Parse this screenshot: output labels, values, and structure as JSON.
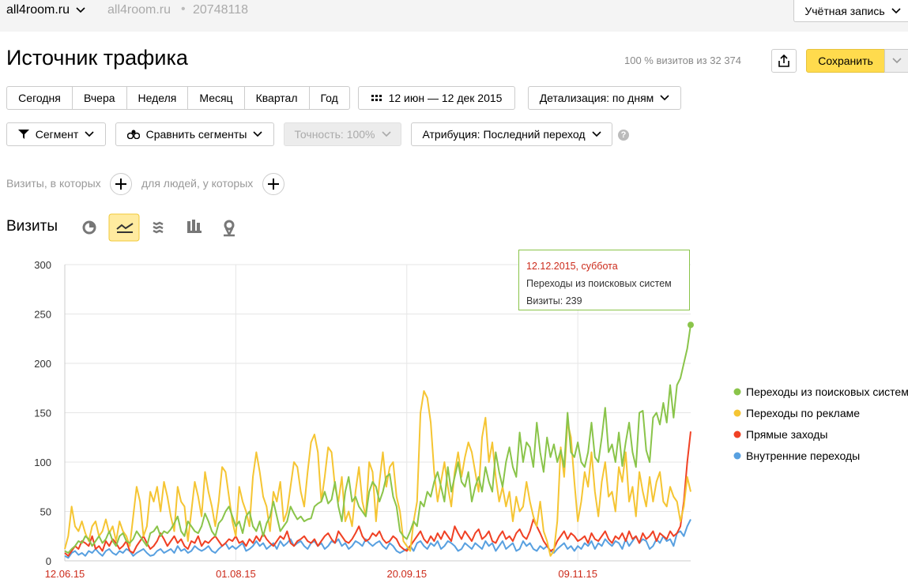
{
  "header": {
    "site": "all4room.ru",
    "site_secondary": "all4room.ru",
    "counter": "20748118",
    "account": "Учётная запись"
  },
  "page": {
    "title": "Источник трафика",
    "summary": "100 % визитов из 32 374",
    "save": "Сохранить"
  },
  "toolbar": {
    "periods": [
      "Сегодня",
      "Вчера",
      "Неделя",
      "Месяц",
      "Квартал",
      "Год"
    ],
    "date_range": "12 июн — 12 дек 2015",
    "detail": "Детализация: по дням",
    "segment": "Сегмент",
    "compare": "Сравнить сегменты",
    "accuracy": "Точность: 100%",
    "attribution": "Атрибуция: Последний переход",
    "help": "?"
  },
  "filter": {
    "visits": "Визиты, в которых",
    "people": "для людей, у которых"
  },
  "chart_heading": "Визиты",
  "tooltip": {
    "date": "12.12.2015, суббота",
    "series": "Переходы из поисковых систем",
    "value": "Визиты: 239"
  },
  "chart_data": {
    "type": "line",
    "categories": [
      "12.06.15",
      null,
      null,
      null,
      null,
      null,
      null,
      null,
      null,
      null,
      null,
      null,
      null,
      null,
      null,
      null,
      null,
      null,
      null,
      null,
      null,
      null,
      null,
      null,
      null,
      null,
      null,
      null,
      null,
      null,
      null,
      null,
      null,
      null,
      null,
      null,
      null,
      null,
      null,
      null,
      null,
      null,
      null,
      null,
      null,
      null,
      null,
      null,
      null,
      null,
      "01.08.15",
      null,
      null,
      null,
      null,
      null,
      null,
      null,
      null,
      null,
      null,
      null,
      null,
      null,
      null,
      null,
      null,
      null,
      null,
      null,
      null,
      null,
      null,
      null,
      null,
      null,
      null,
      null,
      null,
      null,
      null,
      null,
      null,
      null,
      null,
      null,
      null,
      null,
      null,
      null,
      null,
      null,
      null,
      null,
      null,
      null,
      null,
      null,
      null,
      null,
      "20.09.15",
      null,
      null,
      null,
      null,
      null,
      null,
      null,
      null,
      null,
      null,
      null,
      null,
      null,
      null,
      null,
      null,
      null,
      null,
      null,
      null,
      null,
      null,
      null,
      null,
      null,
      null,
      null,
      null,
      null,
      null,
      null,
      null,
      null,
      null,
      null,
      null,
      null,
      null,
      null,
      null,
      null,
      null,
      null,
      null,
      null,
      null,
      null,
      null,
      null,
      "09.11.15",
      null,
      null,
      null,
      null,
      null,
      null,
      null,
      null,
      null,
      null,
      null,
      null,
      null,
      null,
      null,
      null,
      null,
      null,
      null,
      null,
      null,
      null,
      null,
      null,
      null,
      null,
      null,
      null,
      null,
      null,
      null,
      null,
      null
    ],
    "ylim": [
      0,
      300
    ],
    "yticks": [
      0,
      50,
      100,
      150,
      200,
      250,
      300
    ],
    "grid": true,
    "legend": "right",
    "series": [
      {
        "name": "Переходы из поисковых систем",
        "color": "#8ac44a",
        "values": [
          10,
          8,
          12,
          15,
          20,
          18,
          25,
          22,
          15,
          20,
          25,
          18,
          22,
          30,
          20,
          15,
          25,
          28,
          20,
          18,
          22,
          30,
          25,
          20,
          15,
          28,
          30,
          35,
          25,
          30,
          28,
          32,
          38,
          45,
          30,
          25,
          40,
          35,
          30,
          28,
          35,
          48,
          40,
          30,
          25,
          38,
          42,
          50,
          55,
          45,
          35,
          40,
          28,
          45,
          50,
          35,
          30,
          40,
          25,
          38,
          45,
          60,
          45,
          30,
          35,
          40,
          55,
          48,
          42,
          45,
          40,
          42,
          43,
          55,
          58,
          60,
          70,
          58,
          62,
          80,
          55,
          40,
          70,
          85,
          60,
          65,
          55,
          50,
          45,
          70,
          80,
          75,
          60,
          70,
          85,
          88,
          65,
          55,
          30,
          25,
          22,
          30,
          40,
          35,
          60,
          55,
          70,
          65,
          80,
          90,
          75,
          60,
          95,
          70,
          85,
          100,
          80,
          75,
          90,
          60,
          75,
          85,
          70,
          95,
          80,
          70,
          110,
          90,
          75,
          100,
          115,
          95,
          85,
          130,
          100,
          120,
          115,
          95,
          140,
          110,
          90,
          125,
          105,
          118,
          100,
          112,
          95,
          150,
          110,
          105,
          120,
          100,
          95,
          110,
          140,
          105,
          100,
          125,
          155,
          110,
          118,
          100,
          130,
          96,
          120,
          140,
          110,
          95,
          150,
          152,
          112,
          100,
          145,
          150,
          138,
          160,
          140,
          178,
          145,
          178,
          185,
          200,
          215,
          239
        ]
      },
      {
        "name": "Переходы по рекламе",
        "color": "#f5c533",
        "values": [
          12,
          25,
          55,
          35,
          30,
          40,
          28,
          20,
          35,
          40,
          25,
          30,
          42,
          28,
          35,
          20,
          40,
          30,
          25,
          15,
          45,
          75,
          60,
          25,
          35,
          70,
          60,
          75,
          50,
          80,
          65,
          45,
          30,
          75,
          60,
          55,
          20,
          50,
          80,
          65,
          45,
          90,
          70,
          55,
          35,
          60,
          95,
          90,
          65,
          40,
          25,
          75,
          60,
          50,
          35,
          85,
          110,
          90,
          65,
          55,
          30,
          70,
          60,
          80,
          40,
          50,
          75,
          100,
          95,
          70,
          55,
          90,
          120,
          128,
          110,
          60,
          85,
          115,
          110,
          75,
          60,
          85,
          40,
          50,
          35,
          70,
          95,
          60,
          45,
          100,
          90,
          40,
          80,
          110,
          75,
          95,
          100,
          65,
          50,
          20,
          15,
          10,
          40,
          60,
          150,
          172,
          165,
          140,
          90,
          60,
          80,
          100,
          75,
          55,
          90,
          110,
          85,
          105,
          120,
          110,
          90,
          70,
          125,
          145,
          100,
          120,
          85,
          60,
          75,
          55,
          70,
          40,
          65,
          50,
          55,
          80,
          60,
          45,
          35,
          60,
          30,
          20,
          5,
          10,
          40,
          115,
          85,
          140,
          125,
          80,
          40,
          60,
          90,
          75,
          110,
          70,
          45,
          80,
          100,
          65,
          70,
          50,
          95,
          80,
          110,
          60,
          75,
          45,
          90,
          70,
          55,
          85,
          60,
          80,
          90,
          60,
          55,
          75,
          65,
          60,
          40,
          55,
          85,
          70
        ]
      },
      {
        "name": "Прямые заходы",
        "color": "#f04124",
        "values": [
          8,
          5,
          10,
          15,
          12,
          20,
          18,
          15,
          25,
          12,
          15,
          10,
          20,
          15,
          22,
          18,
          12,
          15,
          20,
          10,
          8,
          15,
          20,
          25,
          18,
          12,
          15,
          20,
          28,
          22,
          15,
          20,
          25,
          18,
          22,
          15,
          12,
          20,
          18,
          25,
          15,
          20,
          18,
          22,
          25,
          20,
          15,
          18,
          22,
          20,
          25,
          18,
          20,
          15,
          22,
          18,
          25,
          20,
          28,
          22,
          18,
          15,
          20,
          25,
          22,
          30,
          18,
          15,
          20,
          22,
          25,
          20,
          18,
          22,
          15,
          20,
          25,
          28,
          22,
          18,
          30,
          25,
          20,
          18,
          22,
          28,
          35,
          25,
          20,
          22,
          28,
          25,
          30,
          22,
          18,
          20,
          25,
          22,
          15,
          12,
          10,
          15,
          20,
          25,
          30,
          22,
          18,
          25,
          20,
          28,
          22,
          30,
          25,
          20,
          35,
          28,
          22,
          30,
          25,
          20,
          28,
          32,
          22,
          25,
          30,
          20,
          18,
          25,
          30,
          22,
          25,
          20,
          28,
          32,
          25,
          22,
          30,
          42,
          35,
          28,
          20,
          15,
          10,
          12,
          20,
          25,
          30,
          22,
          28,
          25,
          20,
          22,
          25,
          18,
          28,
          22,
          20,
          25,
          30,
          22,
          18,
          25,
          22,
          28,
          20,
          30,
          22,
          25,
          18,
          28,
          22,
          25,
          30,
          20,
          28,
          25,
          22,
          30,
          25,
          28,
          35,
          60,
          100,
          131
        ]
      },
      {
        "name": "Внутренние переходы",
        "color": "#58a0e0",
        "values": [
          5,
          3,
          8,
          10,
          6,
          8,
          5,
          10,
          8,
          12,
          8,
          5,
          10,
          12,
          8,
          6,
          10,
          8,
          12,
          10,
          5,
          8,
          10,
          12,
          8,
          5,
          6,
          10,
          12,
          8,
          10,
          12,
          8,
          15,
          10,
          12,
          8,
          10,
          15,
          12,
          10,
          12,
          15,
          10,
          8,
          12,
          15,
          18,
          12,
          15,
          12,
          15,
          18,
          10,
          12,
          15,
          20,
          15,
          18,
          12,
          15,
          18,
          12,
          20,
          15,
          18,
          22,
          15,
          18,
          20,
          15,
          12,
          18,
          20,
          15,
          18,
          12,
          15,
          20,
          18,
          22,
          15,
          18,
          12,
          15,
          20,
          18,
          15,
          22,
          18,
          15,
          18,
          20,
          15,
          12,
          18,
          15,
          10,
          8,
          10,
          12,
          15,
          10,
          18,
          20,
          15,
          12,
          18,
          15,
          20,
          12,
          15,
          20,
          18,
          15,
          10,
          12,
          18,
          15,
          12,
          18,
          15,
          12,
          20,
          15,
          18,
          10,
          15,
          20,
          12,
          15,
          18,
          10,
          12,
          20,
          15,
          18,
          12,
          10,
          15,
          12,
          15,
          10,
          8,
          12,
          15,
          18,
          12,
          15,
          10,
          15,
          12,
          18,
          15,
          20,
          12,
          18,
          15,
          22,
          18,
          15,
          20,
          18,
          12,
          22,
          15,
          20,
          25,
          18,
          22,
          20,
          12,
          15,
          22,
          18,
          25,
          20,
          22,
          15,
          28,
          30,
          25,
          35,
          42
        ]
      }
    ]
  }
}
